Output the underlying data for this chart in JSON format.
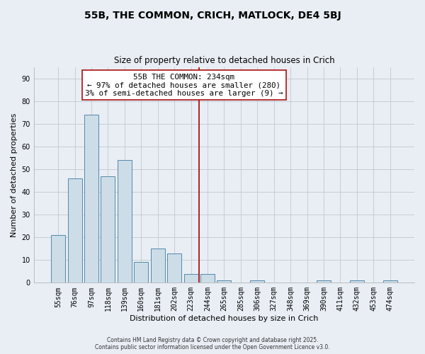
{
  "title": "55B, THE COMMON, CRICH, MATLOCK, DE4 5BJ",
  "subtitle": "Size of property relative to detached houses in Crich",
  "xlabel": "Distribution of detached houses by size in Crich",
  "ylabel": "Number of detached properties",
  "categories": [
    "55sqm",
    "76sqm",
    "97sqm",
    "118sqm",
    "139sqm",
    "160sqm",
    "181sqm",
    "202sqm",
    "223sqm",
    "244sqm",
    "265sqm",
    "285sqm",
    "306sqm",
    "327sqm",
    "348sqm",
    "369sqm",
    "390sqm",
    "411sqm",
    "432sqm",
    "453sqm",
    "474sqm"
  ],
  "values": [
    21,
    46,
    74,
    47,
    54,
    9,
    15,
    13,
    4,
    4,
    1,
    0,
    1,
    0,
    0,
    0,
    1,
    0,
    1,
    0,
    1
  ],
  "bar_color": "#ccdde8",
  "bar_edge_color": "#5588aa",
  "vline_x_idx": 8.5,
  "vline_color": "#aa1111",
  "annotation_title": "55B THE COMMON: 234sqm",
  "annotation_line1": "← 97% of detached houses are smaller (280)",
  "annotation_line2": "3% of semi-detached houses are larger (9) →",
  "ylim": [
    0,
    95
  ],
  "yticks": [
    0,
    10,
    20,
    30,
    40,
    50,
    60,
    70,
    80,
    90
  ],
  "footer_line1": "Contains HM Land Registry data © Crown copyright and database right 2025.",
  "footer_line2": "Contains public sector information licensed under the Open Government Licence v3.0.",
  "bg_color": "#e8eef4",
  "plot_bg_color": "#e8eef4",
  "grid_color": "#c0c8d0"
}
